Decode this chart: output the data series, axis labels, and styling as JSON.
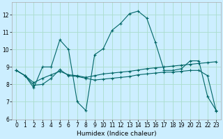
{
  "title": "",
  "xlabel": "Humidex (Indice chaleur)",
  "bg_color": "#cceeff",
  "grid_color": "#aaddcc",
  "line_color": "#006666",
  "xlim": [
    -0.5,
    23.5
  ],
  "ylim": [
    6,
    12.7
  ],
  "yticks": [
    6,
    7,
    8,
    9,
    10,
    11,
    12
  ],
  "xticks": [
    0,
    1,
    2,
    3,
    4,
    5,
    6,
    7,
    8,
    9,
    10,
    11,
    12,
    13,
    14,
    15,
    16,
    17,
    18,
    19,
    20,
    21,
    22,
    23
  ],
  "series1_x": [
    0,
    1,
    2,
    3,
    4,
    5,
    6,
    7,
    8,
    9,
    10,
    11,
    12,
    13,
    14,
    15,
    16,
    17,
    18,
    19,
    20,
    21,
    22,
    23
  ],
  "series1_y": [
    8.8,
    8.5,
    7.8,
    9.0,
    9.0,
    10.55,
    10.0,
    7.0,
    6.5,
    9.7,
    10.05,
    11.1,
    11.5,
    12.05,
    12.2,
    11.8,
    10.4,
    8.8,
    8.8,
    8.9,
    9.35,
    9.35,
    7.3,
    6.5
  ],
  "series2_x": [
    0,
    1,
    2,
    3,
    4,
    5,
    6,
    7,
    8,
    9,
    10,
    11,
    12,
    13,
    14,
    15,
    16,
    17,
    18,
    19,
    20,
    21,
    22,
    23
  ],
  "series2_y": [
    8.8,
    8.5,
    8.1,
    8.35,
    8.55,
    8.75,
    8.55,
    8.5,
    8.4,
    8.5,
    8.6,
    8.65,
    8.7,
    8.75,
    8.82,
    8.9,
    8.95,
    9.0,
    9.05,
    9.1,
    9.15,
    9.2,
    9.25,
    9.3
  ],
  "series3_x": [
    0,
    1,
    2,
    3,
    4,
    5,
    6,
    7,
    8,
    9,
    10,
    11,
    12,
    13,
    14,
    15,
    16,
    17,
    18,
    19,
    20,
    21,
    22,
    23
  ],
  "series3_y": [
    8.8,
    8.5,
    7.95,
    8.0,
    8.35,
    8.85,
    8.5,
    8.45,
    8.35,
    8.25,
    8.3,
    8.35,
    8.4,
    8.45,
    8.55,
    8.6,
    8.65,
    8.7,
    8.7,
    8.75,
    8.8,
    8.8,
    8.5,
    6.45
  ]
}
